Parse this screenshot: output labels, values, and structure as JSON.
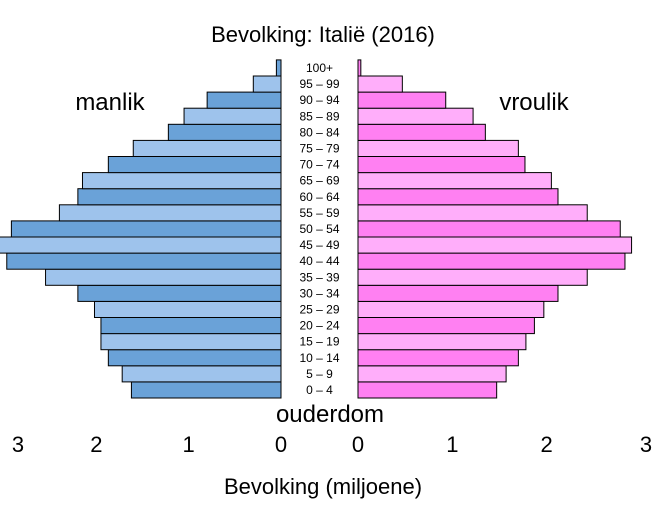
{
  "chart_data": {
    "type": "bar",
    "title": "Bevolking: Italië (2016)",
    "left_label": "manlik",
    "right_label": "vroulik",
    "category_label": "ouderdom",
    "xlabel": "Bevolking (miljoene)",
    "categories": [
      "0 – 4",
      "5 – 9",
      "10 – 14",
      "15 – 19",
      "20 – 24",
      "25 – 29",
      "30 – 34",
      "35 – 39",
      "40 – 44",
      "45 – 49",
      "50 – 54",
      "55 – 59",
      "60 – 64",
      "65 – 69",
      "70 – 74",
      "75 – 79",
      "80 – 84",
      "85 – 89",
      "90 – 94",
      "95 – 99",
      "100+"
    ],
    "xlim": [
      0,
      3
    ],
    "left_ticks": [
      "3",
      "2",
      "1",
      "0"
    ],
    "right_ticks": [
      "0",
      "1",
      "2",
      "3"
    ],
    "series": [
      {
        "name": "manlik",
        "color": "#6aa2d8",
        "alt_color": "#9ec3ec",
        "values": [
          1.62,
          1.72,
          1.87,
          1.95,
          1.95,
          2.02,
          2.2,
          2.55,
          2.97,
          3.05,
          2.92,
          2.4,
          2.2,
          2.15,
          1.87,
          1.6,
          1.22,
          1.05,
          0.8,
          0.3,
          0.05
        ]
      },
      {
        "name": "vroulik",
        "color": "#ff80f2",
        "alt_color": "#ffaefa",
        "values": [
          1.47,
          1.57,
          1.7,
          1.78,
          1.87,
          1.97,
          2.12,
          2.43,
          2.83,
          2.9,
          2.78,
          2.43,
          2.12,
          2.05,
          1.77,
          1.7,
          1.35,
          1.22,
          0.93,
          0.47,
          0.03
        ]
      }
    ]
  }
}
